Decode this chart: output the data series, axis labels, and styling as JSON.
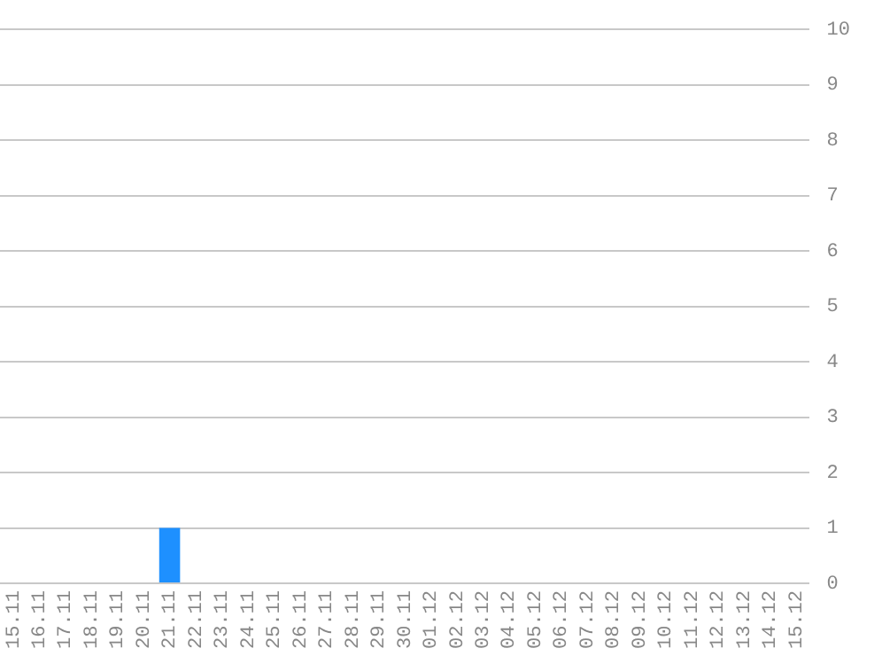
{
  "chart_data": {
    "type": "bar",
    "categories": [
      "15.11",
      "16.11",
      "17.11",
      "18.11",
      "19.11",
      "20.11",
      "21.11",
      "22.11",
      "23.11",
      "24.11",
      "25.11",
      "26.11",
      "27.11",
      "28.11",
      "29.11",
      "30.11",
      "01.12",
      "02.12",
      "03.12",
      "04.12",
      "05.12",
      "06.12",
      "07.12",
      "08.12",
      "09.12",
      "10.12",
      "11.12",
      "12.12",
      "13.12",
      "14.12",
      "15.12"
    ],
    "series": [
      {
        "color": "#1e90ff",
        "values": [
          0,
          0,
          0,
          0,
          0,
          0,
          1,
          0,
          0,
          0,
          0,
          0,
          0,
          0,
          0,
          0,
          0,
          0,
          0,
          0,
          0,
          0,
          0,
          0,
          0,
          0,
          0,
          0,
          0,
          0,
          0
        ]
      }
    ],
    "ylim": [
      0,
      10
    ],
    "yticks": [
      0,
      1,
      2,
      3,
      4,
      5,
      6,
      7,
      8,
      9,
      10
    ],
    "grid": "y",
    "legend": false
  }
}
